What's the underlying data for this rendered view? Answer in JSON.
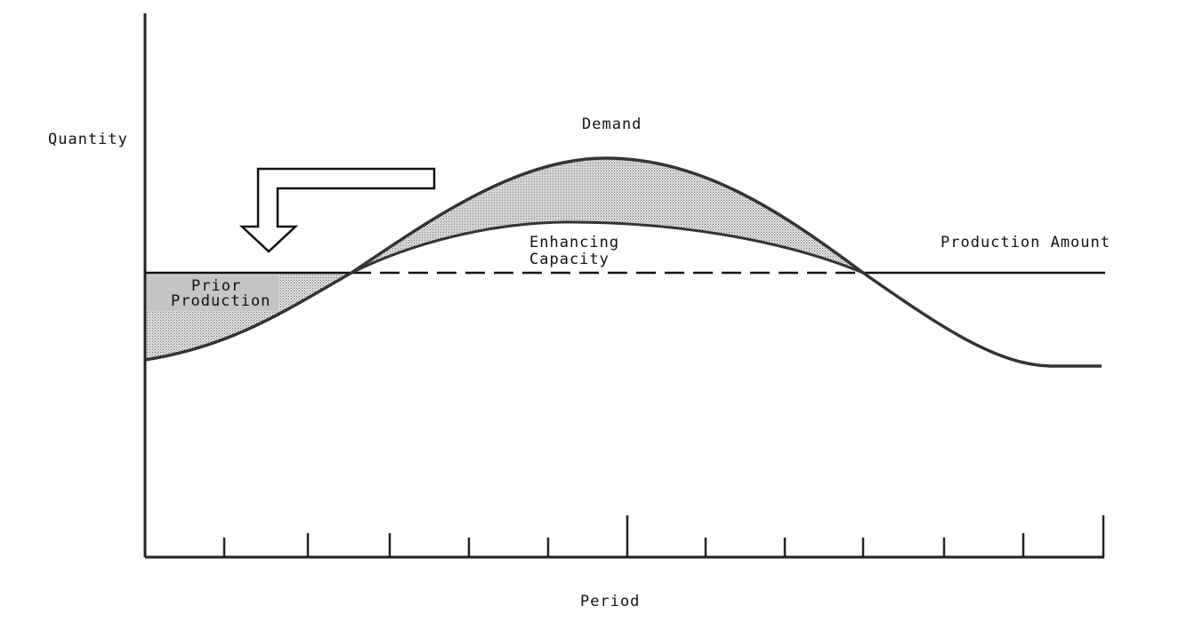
{
  "axes": {
    "y_label": "Quantity",
    "x_label": "Period"
  },
  "labels": {
    "demand": "Demand",
    "enhancing_capacity": [
      "Enhancing",
      "Capacity"
    ],
    "production_amount": "Production Amount",
    "prior_production": [
      "Prior",
      "Production"
    ]
  }
}
